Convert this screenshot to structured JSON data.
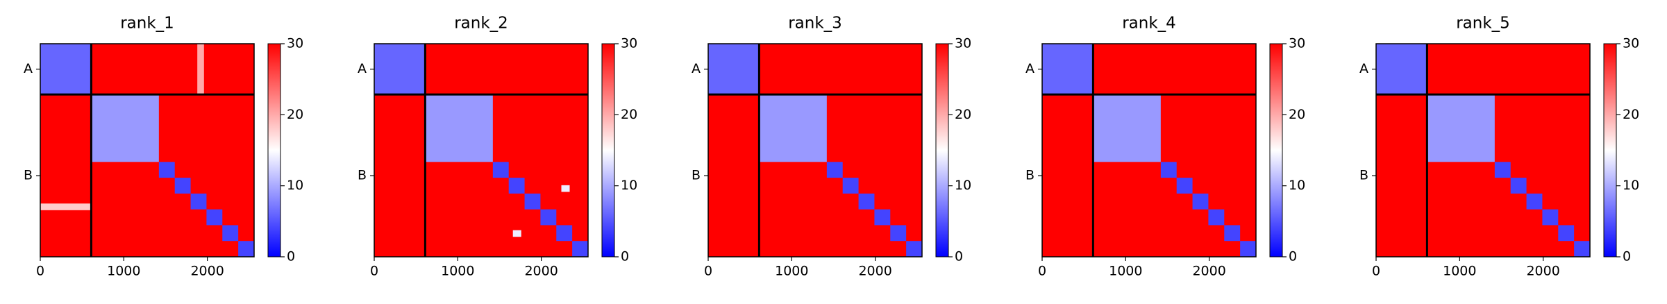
{
  "chart_data": [
    {
      "type": "heatmap",
      "title": "rank_1",
      "xlim": [
        0,
        2560
      ],
      "ylim": [
        2560,
        0
      ],
      "xticks": [
        0,
        1000,
        2000
      ],
      "yticks": [
        {
          "value": 305,
          "label": "A"
        },
        {
          "value": 1585,
          "label": "B"
        }
      ],
      "clim": [
        0,
        30
      ],
      "cticks": [
        0,
        10,
        20,
        30
      ],
      "chain_breaks": [
        610
      ],
      "cells": [
        {
          "x": [
            0,
            2560
          ],
          "y": [
            0,
            2560
          ],
          "value": 30
        },
        {
          "x": [
            0,
            610
          ],
          "y": [
            0,
            610
          ],
          "value": 6
        },
        {
          "x": [
            610,
            1420
          ],
          "y": [
            610,
            1420
          ],
          "value": 9
        },
        {
          "x": [
            1880,
            1960
          ],
          "y": [
            0,
            610
          ],
          "value": 20
        },
        {
          "x": [
            0,
            610
          ],
          "y": [
            1920,
            2000
          ],
          "value": 18
        },
        {
          "x": [
            1420,
            1610
          ],
          "y": [
            1420,
            1610
          ],
          "value": 4
        },
        {
          "x": [
            1610,
            1800
          ],
          "y": [
            1610,
            1800
          ],
          "value": 4
        },
        {
          "x": [
            1800,
            1990
          ],
          "y": [
            1800,
            1990
          ],
          "value": 4
        },
        {
          "x": [
            1990,
            2180
          ],
          "y": [
            1990,
            2180
          ],
          "value": 4
        },
        {
          "x": [
            2180,
            2370
          ],
          "y": [
            2180,
            2370
          ],
          "value": 4
        },
        {
          "x": [
            2370,
            2560
          ],
          "y": [
            2370,
            2560
          ],
          "value": 4
        }
      ]
    },
    {
      "type": "heatmap",
      "title": "rank_2",
      "xlim": [
        0,
        2560
      ],
      "ylim": [
        2560,
        0
      ],
      "xticks": [
        0,
        1000,
        2000
      ],
      "yticks": [
        {
          "value": 305,
          "label": "A"
        },
        {
          "value": 1585,
          "label": "B"
        }
      ],
      "clim": [
        0,
        30
      ],
      "cticks": [
        0,
        10,
        20,
        30
      ],
      "chain_breaks": [
        610
      ],
      "cells": [
        {
          "x": [
            0,
            2560
          ],
          "y": [
            0,
            2560
          ],
          "value": 30
        },
        {
          "x": [
            0,
            610
          ],
          "y": [
            0,
            610
          ],
          "value": 6
        },
        {
          "x": [
            610,
            1420
          ],
          "y": [
            610,
            1420
          ],
          "value": 9
        },
        {
          "x": [
            2240,
            2340
          ],
          "y": [
            1700,
            1780
          ],
          "value": 14
        },
        {
          "x": [
            1660,
            1760
          ],
          "y": [
            2240,
            2320
          ],
          "value": 14
        },
        {
          "x": [
            1420,
            1610
          ],
          "y": [
            1420,
            1610
          ],
          "value": 4
        },
        {
          "x": [
            1610,
            1800
          ],
          "y": [
            1610,
            1800
          ],
          "value": 4
        },
        {
          "x": [
            1800,
            1990
          ],
          "y": [
            1800,
            1990
          ],
          "value": 4
        },
        {
          "x": [
            1990,
            2180
          ],
          "y": [
            1990,
            2180
          ],
          "value": 4
        },
        {
          "x": [
            2180,
            2370
          ],
          "y": [
            2180,
            2370
          ],
          "value": 4
        },
        {
          "x": [
            2370,
            2560
          ],
          "y": [
            2370,
            2560
          ],
          "value": 4
        }
      ]
    },
    {
      "type": "heatmap",
      "title": "rank_3",
      "xlim": [
        0,
        2560
      ],
      "ylim": [
        2560,
        0
      ],
      "xticks": [
        0,
        1000,
        2000
      ],
      "yticks": [
        {
          "value": 305,
          "label": "A"
        },
        {
          "value": 1585,
          "label": "B"
        }
      ],
      "clim": [
        0,
        30
      ],
      "cticks": [
        0,
        10,
        20,
        30
      ],
      "chain_breaks": [
        610
      ],
      "cells": [
        {
          "x": [
            0,
            2560
          ],
          "y": [
            0,
            2560
          ],
          "value": 30
        },
        {
          "x": [
            0,
            610
          ],
          "y": [
            0,
            610
          ],
          "value": 6
        },
        {
          "x": [
            610,
            1420
          ],
          "y": [
            610,
            1420
          ],
          "value": 9
        },
        {
          "x": [
            1420,
            1610
          ],
          "y": [
            1420,
            1610
          ],
          "value": 4
        },
        {
          "x": [
            1610,
            1800
          ],
          "y": [
            1610,
            1800
          ],
          "value": 4
        },
        {
          "x": [
            1800,
            1990
          ],
          "y": [
            1800,
            1990
          ],
          "value": 4
        },
        {
          "x": [
            1990,
            2180
          ],
          "y": [
            1990,
            2180
          ],
          "value": 4
        },
        {
          "x": [
            2180,
            2370
          ],
          "y": [
            2180,
            2370
          ],
          "value": 4
        },
        {
          "x": [
            2370,
            2560
          ],
          "y": [
            2370,
            2560
          ],
          "value": 4
        }
      ]
    },
    {
      "type": "heatmap",
      "title": "rank_4",
      "xlim": [
        0,
        2560
      ],
      "ylim": [
        2560,
        0
      ],
      "xticks": [
        0,
        1000,
        2000
      ],
      "yticks": [
        {
          "value": 305,
          "label": "A"
        },
        {
          "value": 1585,
          "label": "B"
        }
      ],
      "clim": [
        0,
        30
      ],
      "cticks": [
        0,
        10,
        20,
        30
      ],
      "chain_breaks": [
        610
      ],
      "cells": [
        {
          "x": [
            0,
            2560
          ],
          "y": [
            0,
            2560
          ],
          "value": 30
        },
        {
          "x": [
            0,
            610
          ],
          "y": [
            0,
            610
          ],
          "value": 6
        },
        {
          "x": [
            610,
            1420
          ],
          "y": [
            610,
            1420
          ],
          "value": 9
        },
        {
          "x": [
            1420,
            1610
          ],
          "y": [
            1420,
            1610
          ],
          "value": 4
        },
        {
          "x": [
            1610,
            1800
          ],
          "y": [
            1610,
            1800
          ],
          "value": 4
        },
        {
          "x": [
            1800,
            1990
          ],
          "y": [
            1800,
            1990
          ],
          "value": 4
        },
        {
          "x": [
            1990,
            2180
          ],
          "y": [
            1990,
            2180
          ],
          "value": 4
        },
        {
          "x": [
            2180,
            2370
          ],
          "y": [
            2180,
            2370
          ],
          "value": 4
        },
        {
          "x": [
            2370,
            2560
          ],
          "y": [
            2370,
            2560
          ],
          "value": 4
        }
      ]
    },
    {
      "type": "heatmap",
      "title": "rank_5",
      "xlim": [
        0,
        2560
      ],
      "ylim": [
        2560,
        0
      ],
      "xticks": [
        0,
        1000,
        2000
      ],
      "yticks": [
        {
          "value": 305,
          "label": "A"
        },
        {
          "value": 1585,
          "label": "B"
        }
      ],
      "clim": [
        0,
        30
      ],
      "cticks": [
        0,
        10,
        20,
        30
      ],
      "chain_breaks": [
        610
      ],
      "cells": [
        {
          "x": [
            0,
            2560
          ],
          "y": [
            0,
            2560
          ],
          "value": 30
        },
        {
          "x": [
            0,
            610
          ],
          "y": [
            0,
            610
          ],
          "value": 6
        },
        {
          "x": [
            610,
            1420
          ],
          "y": [
            610,
            1420
          ],
          "value": 9
        },
        {
          "x": [
            1420,
            1610
          ],
          "y": [
            1420,
            1610
          ],
          "value": 4
        },
        {
          "x": [
            1610,
            1800
          ],
          "y": [
            1610,
            1800
          ],
          "value": 4
        },
        {
          "x": [
            1800,
            1990
          ],
          "y": [
            1800,
            1990
          ],
          "value": 4
        },
        {
          "x": [
            1990,
            2180
          ],
          "y": [
            1990,
            2180
          ],
          "value": 4
        },
        {
          "x": [
            2180,
            2370
          ],
          "y": [
            2180,
            2370
          ],
          "value": 4
        },
        {
          "x": [
            2370,
            2560
          ],
          "y": [
            2370,
            2560
          ],
          "value": 4
        }
      ]
    }
  ]
}
